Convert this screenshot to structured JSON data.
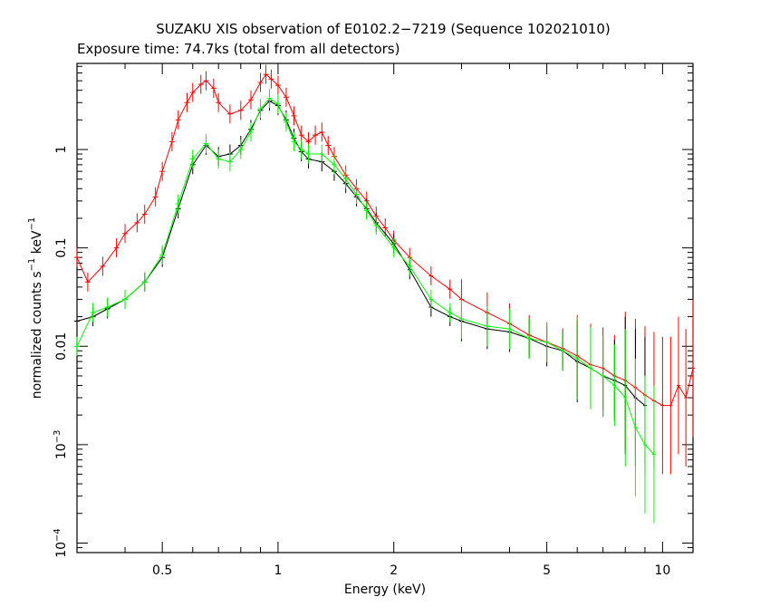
{
  "chart_data": {
    "type": "scatter",
    "title": "SUZAKU XIS observation of E0102.2−7219 (Sequence 102021010)",
    "subtitle": "Exposure time: 74.7ks (total from all detectors)",
    "xlabel": "Energy (keV)",
    "ylabel_parts": {
      "base": "normalized counts s",
      "sup1": "−1",
      "mid": " keV",
      "sup2": "−1"
    },
    "x_scale": "log",
    "y_scale": "log",
    "xlim": [
      0.3,
      12.0
    ],
    "ylim": [
      8e-05,
      7.5
    ],
    "grid": false,
    "legend": "none",
    "x_ticks": [
      {
        "value": 0.5,
        "label": "0.5"
      },
      {
        "value": 1,
        "label": "1"
      },
      {
        "value": 2,
        "label": "2"
      },
      {
        "value": 5,
        "label": "5"
      },
      {
        "value": 10,
        "label": "10"
      }
    ],
    "y_ticks": [
      {
        "value": 0.0001,
        "mantissa": "10",
        "exp": "−4"
      },
      {
        "value": 0.001,
        "mantissa": "10",
        "exp": "−3"
      },
      {
        "value": 0.01,
        "label": "0.01"
      },
      {
        "value": 0.1,
        "label": "0.1"
      },
      {
        "value": 1,
        "label": "1"
      }
    ],
    "series": [
      {
        "color": "#ff0000",
        "x": [
          0.3,
          0.32,
          0.35,
          0.38,
          0.4,
          0.43,
          0.45,
          0.48,
          0.5,
          0.53,
          0.55,
          0.58,
          0.6,
          0.63,
          0.65,
          0.68,
          0.7,
          0.75,
          0.8,
          0.85,
          0.9,
          0.93,
          0.96,
          1.0,
          1.05,
          1.1,
          1.15,
          1.2,
          1.25,
          1.3,
          1.35,
          1.4,
          1.5,
          1.6,
          1.7,
          1.8,
          1.9,
          2.0,
          2.2,
          2.5,
          2.8,
          3.0,
          3.5,
          4.0,
          4.5,
          5.0,
          5.5,
          6.0,
          6.5,
          7.0,
          7.5,
          8.0,
          8.5,
          9.0,
          9.5,
          10.0,
          10.5,
          11.0,
          11.5,
          12.0
        ],
        "y": [
          0.08,
          0.045,
          0.065,
          0.1,
          0.14,
          0.18,
          0.22,
          0.33,
          0.6,
          1.2,
          2.0,
          3.0,
          3.8,
          4.6,
          5.0,
          4.2,
          3.0,
          2.3,
          2.5,
          3.2,
          4.8,
          5.8,
          5.2,
          4.5,
          3.4,
          2.2,
          1.4,
          1.2,
          1.4,
          1.5,
          1.1,
          0.85,
          0.55,
          0.4,
          0.3,
          0.21,
          0.16,
          0.12,
          0.08,
          0.052,
          0.038,
          0.03,
          0.022,
          0.017,
          0.013,
          0.011,
          0.0095,
          0.008,
          0.0065,
          0.006,
          0.005,
          0.0045,
          0.0038,
          0.0032,
          0.0028,
          0.0025,
          0.0025,
          0.004,
          0.003,
          0.006
        ]
      },
      {
        "color": "#000000",
        "x": [
          0.3,
          0.33,
          0.36,
          0.4,
          0.45,
          0.5,
          0.55,
          0.6,
          0.65,
          0.7,
          0.75,
          0.8,
          0.85,
          0.9,
          0.95,
          1.0,
          1.05,
          1.1,
          1.15,
          1.2,
          1.3,
          1.4,
          1.5,
          1.6,
          1.7,
          1.8,
          2.0,
          2.2,
          2.5,
          2.8,
          3.0,
          3.5,
          4.0,
          4.5,
          5.0,
          5.5,
          6.0,
          6.5,
          7.0,
          7.5,
          8.0,
          8.5,
          9.0
        ],
        "y": [
          0.018,
          0.02,
          0.024,
          0.03,
          0.045,
          0.08,
          0.25,
          0.7,
          1.1,
          0.85,
          0.9,
          1.1,
          1.6,
          2.5,
          3.1,
          2.8,
          2.0,
          1.3,
          0.95,
          0.8,
          0.75,
          0.6,
          0.45,
          0.33,
          0.25,
          0.18,
          0.11,
          0.06,
          0.025,
          0.02,
          0.018,
          0.015,
          0.014,
          0.012,
          0.01,
          0.009,
          0.007,
          0.006,
          0.005,
          0.0045,
          0.004,
          0.003,
          0.0025
        ]
      },
      {
        "color": "#00ff00",
        "x": [
          0.3,
          0.33,
          0.36,
          0.4,
          0.45,
          0.5,
          0.55,
          0.6,
          0.65,
          0.7,
          0.75,
          0.8,
          0.85,
          0.9,
          0.95,
          1.0,
          1.05,
          1.1,
          1.15,
          1.2,
          1.3,
          1.4,
          1.5,
          1.6,
          1.7,
          1.8,
          2.0,
          2.2,
          2.5,
          2.8,
          3.0,
          3.5,
          4.0,
          4.5,
          5.0,
          5.5,
          6.0,
          6.5,
          7.0,
          7.5,
          8.0,
          8.5,
          9.0,
          9.5
        ],
        "y": [
          0.01,
          0.022,
          0.025,
          0.03,
          0.045,
          0.085,
          0.28,
          0.8,
          1.15,
          0.8,
          0.75,
          1.0,
          1.5,
          2.6,
          3.3,
          2.9,
          1.9,
          1.2,
          1.0,
          0.9,
          0.9,
          0.7,
          0.5,
          0.35,
          0.24,
          0.17,
          0.1,
          0.065,
          0.03,
          0.022,
          0.019,
          0.016,
          0.015,
          0.012,
          0.011,
          0.009,
          0.0075,
          0.006,
          0.005,
          0.004,
          0.003,
          0.0015,
          0.001,
          0.0008
        ]
      }
    ]
  }
}
